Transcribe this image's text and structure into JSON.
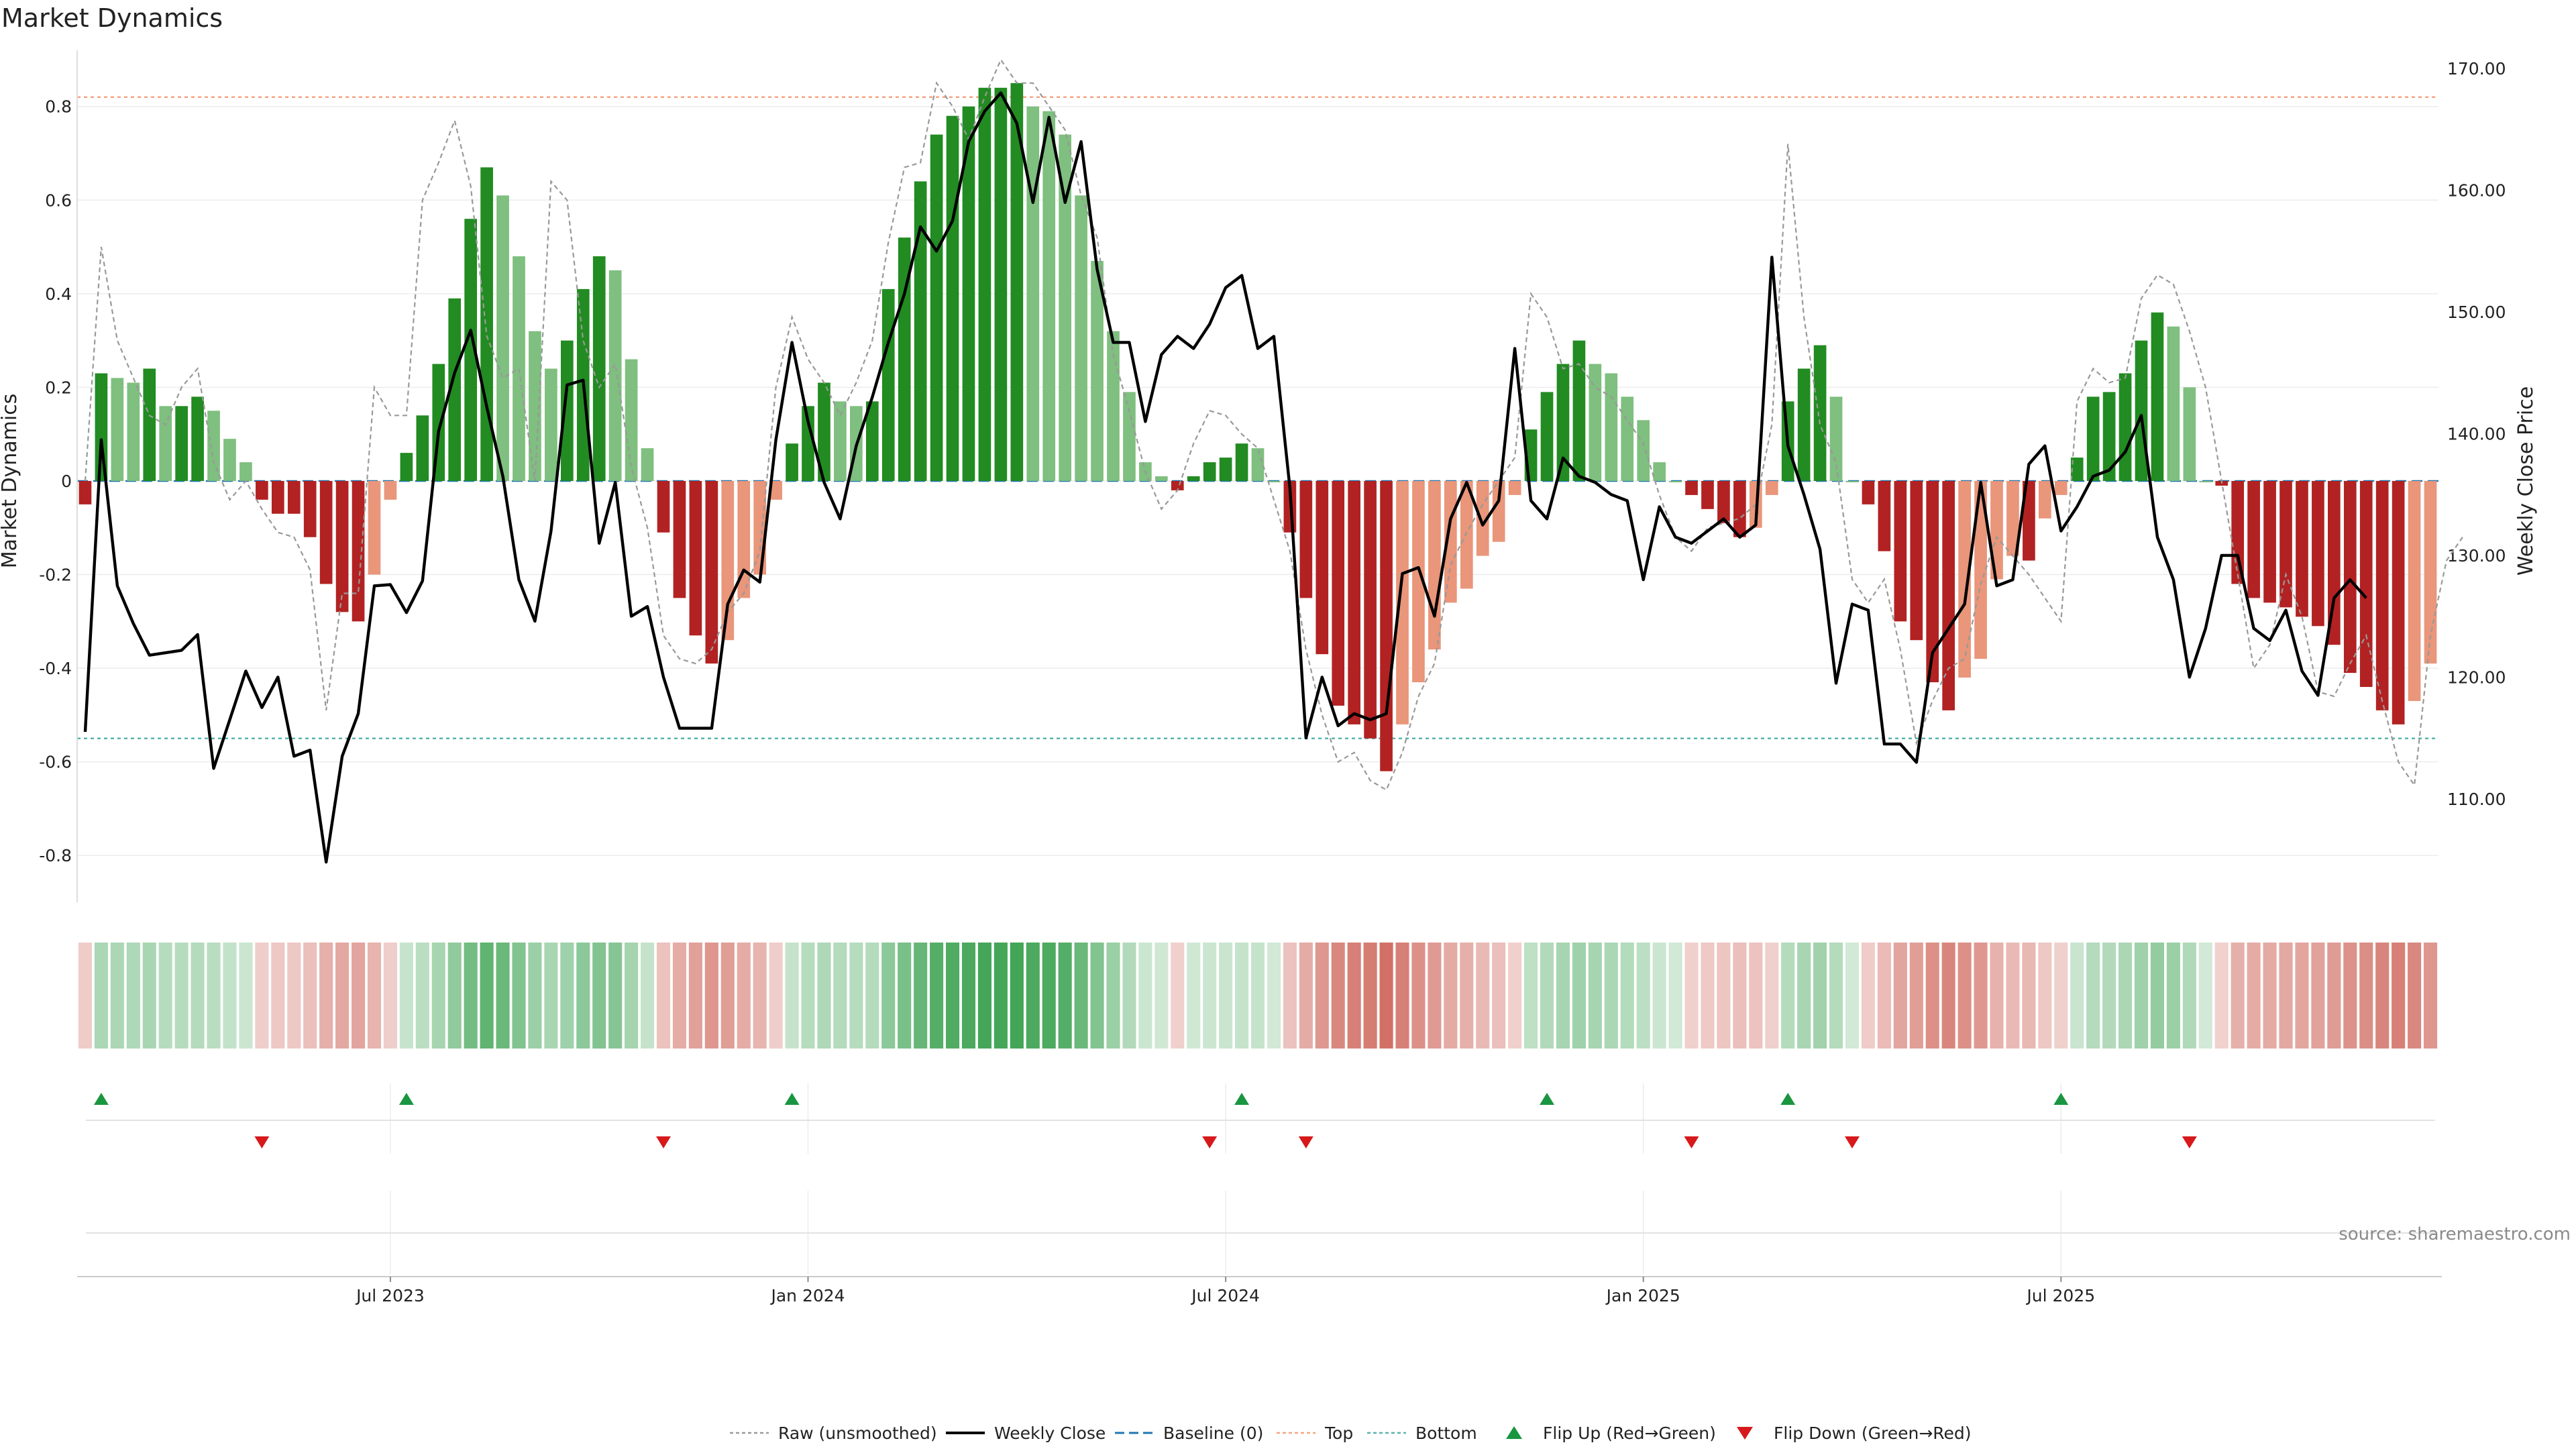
{
  "title": "Market Dynamics",
  "source": "source: sharemaestro.com",
  "chart_data": {
    "type": "bar",
    "ylabel": "Market Dynamics",
    "y2label": "Weekly Close Price",
    "ylim": [
      -0.9,
      0.92
    ],
    "y2lim": [
      101.5,
      171.5
    ],
    "yticks": [
      "0.8",
      "0.6",
      "0.4",
      "0.2",
      "0",
      "-0.2",
      "-0.4",
      "-0.6",
      "-0.8"
    ],
    "y2ticks": [
      "170.00",
      "160.00",
      "150.00",
      "140.00",
      "130.00",
      "120.00",
      "110.00"
    ],
    "xticks": [
      "Jul 2023",
      "Jan 2024",
      "Jul 2024",
      "Jan 2025",
      "Jul 2025"
    ],
    "xtick_index": [
      19.5,
      45.5,
      71.5,
      97.5,
      123.5
    ],
    "top_level": 0.82,
    "bottom_level": -0.55,
    "grid": true,
    "legend_position": "bottom-center",
    "colors": {
      "green_strong": "#228b22",
      "green_light": "#7fbf7f",
      "red_strong": "#b22222",
      "red_light": "#e9967a",
      "price": "#000000",
      "raw": "#999999",
      "baseline": "#1f77b4",
      "top": "#f4a582",
      "bottom": "#5ab4ac",
      "flip_up": "#1a9641",
      "flip_down": "#d7191c"
    },
    "bars": [
      -0.05,
      0.23,
      0.22,
      0.21,
      0.24,
      0.16,
      0.16,
      0.18,
      0.15,
      0.09,
      0.04,
      -0.04,
      -0.07,
      -0.07,
      -0.12,
      -0.22,
      -0.28,
      -0.3,
      -0.2,
      -0.04,
      0.06,
      0.14,
      0.25,
      0.39,
      0.56,
      0.67,
      0.61,
      0.48,
      0.32,
      0.24,
      0.3,
      0.41,
      0.48,
      0.45,
      0.26,
      0.07,
      -0.11,
      -0.25,
      -0.33,
      -0.39,
      -0.34,
      -0.25,
      -0.2,
      -0.04,
      0.08,
      0.16,
      0.21,
      0.17,
      0.16,
      0.17,
      0.41,
      0.52,
      0.64,
      0.74,
      0.78,
      0.8,
      0.84,
      0.84,
      0.85,
      0.8,
      0.79,
      0.74,
      0.61,
      0.47,
      0.32,
      0.19,
      0.04,
      0.01,
      -0.02,
      0.01,
      0.04,
      0.05,
      0.08,
      0.07,
      0.0,
      -0.11,
      -0.25,
      -0.37,
      -0.48,
      -0.52,
      -0.55,
      -0.62,
      -0.52,
      -0.43,
      -0.36,
      -0.26,
      -0.23,
      -0.16,
      -0.13,
      -0.03,
      0.11,
      0.19,
      0.25,
      0.3,
      0.25,
      0.23,
      0.18,
      0.13,
      0.04,
      0.0,
      -0.03,
      -0.06,
      -0.09,
      -0.12,
      -0.1,
      -0.03,
      0.17,
      0.24,
      0.29,
      0.18,
      0.0,
      -0.05,
      -0.15,
      -0.3,
      -0.34,
      -0.43,
      -0.49,
      -0.42,
      -0.38,
      -0.21,
      -0.16,
      -0.17,
      -0.08,
      -0.03,
      0.05,
      0.18,
      0.19,
      0.23,
      0.3,
      0.36,
      0.33,
      0.2,
      0.0,
      -0.01,
      -0.22,
      -0.25,
      -0.26,
      -0.27,
      -0.29,
      -0.31,
      -0.35,
      -0.41,
      -0.44,
      -0.49,
      -0.52,
      -0.47,
      -0.39
    ],
    "raw": [
      0.0,
      0.5,
      0.3,
      0.22,
      0.14,
      0.12,
      0.2,
      0.24,
      0.04,
      -0.04,
      0.0,
      -0.06,
      -0.11,
      -0.12,
      -0.19,
      -0.49,
      -0.24,
      -0.24,
      0.2,
      0.14,
      0.14,
      0.6,
      0.68,
      0.77,
      0.63,
      0.31,
      0.22,
      0.24,
      0.0,
      0.64,
      0.6,
      0.3,
      0.2,
      0.25,
      0.03,
      -0.1,
      -0.33,
      -0.38,
      -0.39,
      -0.36,
      -0.28,
      -0.24,
      -0.15,
      0.2,
      0.35,
      0.26,
      0.21,
      0.14,
      0.21,
      0.3,
      0.51,
      0.67,
      0.68,
      0.85,
      0.8,
      0.73,
      0.82,
      0.9,
      0.85,
      0.85,
      0.8,
      0.75,
      0.61,
      0.52,
      0.27,
      0.15,
      0.02,
      -0.06,
      -0.02,
      0.08,
      0.15,
      0.14,
      0.1,
      0.07,
      -0.04,
      -0.15,
      -0.36,
      -0.5,
      -0.6,
      -0.58,
      -0.64,
      -0.66,
      -0.58,
      -0.46,
      -0.39,
      -0.18,
      -0.11,
      -0.05,
      0.0,
      0.05,
      0.4,
      0.35,
      0.24,
      0.25,
      0.2,
      0.18,
      0.13,
      0.08,
      -0.03,
      -0.12,
      -0.15,
      -0.1,
      -0.09,
      -0.08,
      -0.05,
      0.12,
      0.72,
      0.35,
      0.12,
      0.04,
      -0.21,
      -0.26,
      -0.21,
      -0.36,
      -0.56,
      -0.47,
      -0.4,
      -0.38,
      -0.22,
      -0.12,
      -0.16,
      -0.2,
      -0.25,
      -0.3,
      0.17,
      0.24,
      0.21,
      0.22,
      0.39,
      0.44,
      0.42,
      0.32,
      0.2,
      0.0,
      -0.2,
      -0.4,
      -0.35,
      -0.2,
      -0.29,
      -0.45,
      -0.46,
      -0.39,
      -0.33,
      -0.47,
      -0.6,
      -0.65,
      -0.33,
      -0.17,
      -0.12
    ],
    "price": [
      115.5,
      139.5,
      127.5,
      124.4,
      121.8,
      122.0,
      122.2,
      123.5,
      112.5,
      116.5,
      120.5,
      117.5,
      120.0,
      113.5,
      114.0,
      104.8,
      113.5,
      117.0,
      127.5,
      127.6,
      125.3,
      127.9,
      140.2,
      145.0,
      148.5,
      142.2,
      136.5,
      128.0,
      124.6,
      132.0,
      144.0,
      144.4,
      131.0,
      136.0,
      125.0,
      125.8,
      120.0,
      115.8,
      115.8,
      115.8,
      126.0,
      128.8,
      127.8,
      139.5,
      147.5,
      141.0,
      136.0,
      133.0,
      139.0,
      143.0,
      147.5,
      151.5,
      157.0,
      155.0,
      157.5,
      164.0,
      166.5,
      168.0,
      165.5,
      159.0,
      166.0,
      159.0,
      164.0,
      153.5,
      147.5,
      147.5,
      141.0,
      146.5,
      148.0,
      147.0,
      149.0,
      152.0,
      153.0,
      147.0,
      148.0,
      135.5,
      115.0,
      120.0,
      116.0,
      117.0,
      116.5,
      117.0,
      128.5,
      129.0,
      125.0,
      133.0,
      136.0,
      132.5,
      134.5,
      147.0,
      134.5,
      133.0,
      138.0,
      136.5,
      136.0,
      135.0,
      134.5,
      128.0,
      134.0,
      131.5,
      131.0,
      132.0,
      133.0,
      131.5,
      132.5,
      154.5,
      139.0,
      135.0,
      130.5,
      119.5,
      126.0,
      125.5,
      114.5,
      114.5,
      113.0,
      122.0,
      124.0,
      126.0,
      136.0,
      127.5,
      128.0,
      137.5,
      139.0,
      132.0,
      134.0,
      136.5,
      137.0,
      138.5,
      141.5,
      131.5,
      128.0,
      120.0,
      124.0,
      130.0,
      130.0,
      124.0,
      123.0,
      125.5,
      120.5,
      118.5,
      126.5,
      128.0,
      126.5
    ],
    "flip_up": [
      1,
      20,
      44,
      72,
      91,
      106,
      123
    ],
    "flip_down": [
      11,
      36,
      70,
      76,
      100,
      110,
      131
    ],
    "legend": [
      "Raw (unsmoothed)",
      "Weekly Close",
      "Baseline (0)",
      "Top",
      "Bottom",
      "Flip Up (Red→Green)",
      "Flip Down (Green→Red)"
    ]
  }
}
